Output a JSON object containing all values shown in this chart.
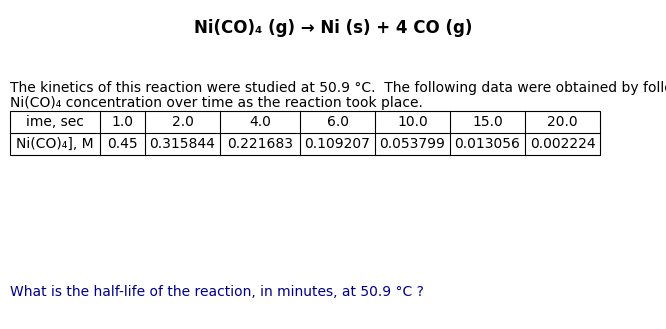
{
  "title": "Ni(CO)₄ (g) → Ni (s) + 4 CO (g)",
  "paragraph_line1": "The kinetics of this reaction were studied at 50.9 °C.  The following data were obtained by following",
  "paragraph_line2": "Ni(CO)₄ concentration over time as the reaction took place.",
  "question": "What is the half-life of the reaction, in minutes, at 50.9 °C ?",
  "col_headers": [
    "ime, sec",
    "1.0",
    "2.0",
    "4.0",
    "6.0",
    "10.0",
    "15.0",
    "20.0"
  ],
  "row_label": "Ni(CO)₄], M",
  "row_values": [
    "0.45",
    "0.315844",
    "0.221683",
    "0.109207",
    "0.053799",
    "0.013056",
    "0.002224"
  ],
  "bg_color": "#ffffff",
  "text_color": "#000000",
  "title_fontsize": 12,
  "body_fontsize": 10,
  "table_fontsize": 10,
  "question_color": "#00008B"
}
